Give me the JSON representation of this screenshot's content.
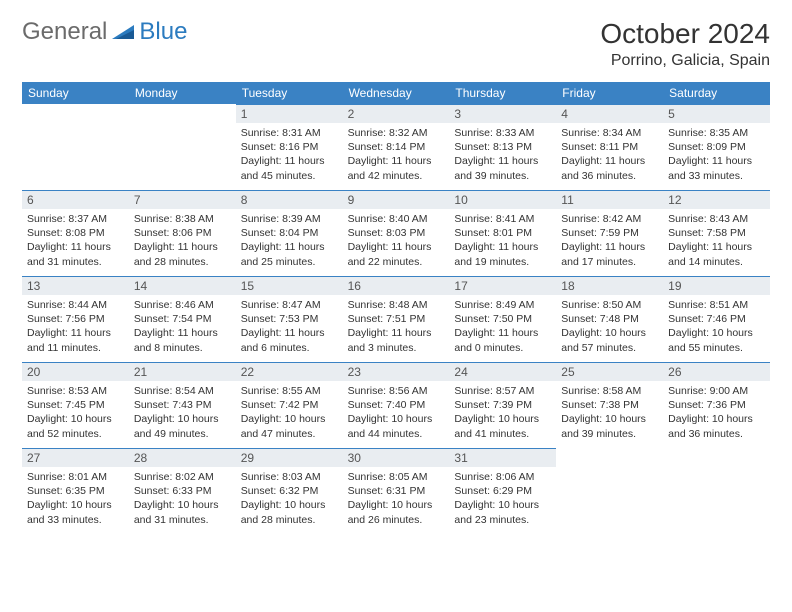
{
  "logo": {
    "part1": "General",
    "part2": "Blue"
  },
  "title": "October 2024",
  "location": "Porrino, Galicia, Spain",
  "colors": {
    "header_bg": "#3a82c4",
    "daynum_bg": "#e9edf1",
    "border": "#3a82c4",
    "logo_gray": "#6b6b6b",
    "logo_blue": "#2b7bbf"
  },
  "dayHeaders": [
    "Sunday",
    "Monday",
    "Tuesday",
    "Wednesday",
    "Thursday",
    "Friday",
    "Saturday"
  ],
  "weeks": [
    [
      null,
      null,
      {
        "n": "1",
        "sr": "Sunrise: 8:31 AM",
        "ss": "Sunset: 8:16 PM",
        "dl": "Daylight: 11 hours and 45 minutes."
      },
      {
        "n": "2",
        "sr": "Sunrise: 8:32 AM",
        "ss": "Sunset: 8:14 PM",
        "dl": "Daylight: 11 hours and 42 minutes."
      },
      {
        "n": "3",
        "sr": "Sunrise: 8:33 AM",
        "ss": "Sunset: 8:13 PM",
        "dl": "Daylight: 11 hours and 39 minutes."
      },
      {
        "n": "4",
        "sr": "Sunrise: 8:34 AM",
        "ss": "Sunset: 8:11 PM",
        "dl": "Daylight: 11 hours and 36 minutes."
      },
      {
        "n": "5",
        "sr": "Sunrise: 8:35 AM",
        "ss": "Sunset: 8:09 PM",
        "dl": "Daylight: 11 hours and 33 minutes."
      }
    ],
    [
      {
        "n": "6",
        "sr": "Sunrise: 8:37 AM",
        "ss": "Sunset: 8:08 PM",
        "dl": "Daylight: 11 hours and 31 minutes."
      },
      {
        "n": "7",
        "sr": "Sunrise: 8:38 AM",
        "ss": "Sunset: 8:06 PM",
        "dl": "Daylight: 11 hours and 28 minutes."
      },
      {
        "n": "8",
        "sr": "Sunrise: 8:39 AM",
        "ss": "Sunset: 8:04 PM",
        "dl": "Daylight: 11 hours and 25 minutes."
      },
      {
        "n": "9",
        "sr": "Sunrise: 8:40 AM",
        "ss": "Sunset: 8:03 PM",
        "dl": "Daylight: 11 hours and 22 minutes."
      },
      {
        "n": "10",
        "sr": "Sunrise: 8:41 AM",
        "ss": "Sunset: 8:01 PM",
        "dl": "Daylight: 11 hours and 19 minutes."
      },
      {
        "n": "11",
        "sr": "Sunrise: 8:42 AM",
        "ss": "Sunset: 7:59 PM",
        "dl": "Daylight: 11 hours and 17 minutes."
      },
      {
        "n": "12",
        "sr": "Sunrise: 8:43 AM",
        "ss": "Sunset: 7:58 PM",
        "dl": "Daylight: 11 hours and 14 minutes."
      }
    ],
    [
      {
        "n": "13",
        "sr": "Sunrise: 8:44 AM",
        "ss": "Sunset: 7:56 PM",
        "dl": "Daylight: 11 hours and 11 minutes."
      },
      {
        "n": "14",
        "sr": "Sunrise: 8:46 AM",
        "ss": "Sunset: 7:54 PM",
        "dl": "Daylight: 11 hours and 8 minutes."
      },
      {
        "n": "15",
        "sr": "Sunrise: 8:47 AM",
        "ss": "Sunset: 7:53 PM",
        "dl": "Daylight: 11 hours and 6 minutes."
      },
      {
        "n": "16",
        "sr": "Sunrise: 8:48 AM",
        "ss": "Sunset: 7:51 PM",
        "dl": "Daylight: 11 hours and 3 minutes."
      },
      {
        "n": "17",
        "sr": "Sunrise: 8:49 AM",
        "ss": "Sunset: 7:50 PM",
        "dl": "Daylight: 11 hours and 0 minutes."
      },
      {
        "n": "18",
        "sr": "Sunrise: 8:50 AM",
        "ss": "Sunset: 7:48 PM",
        "dl": "Daylight: 10 hours and 57 minutes."
      },
      {
        "n": "19",
        "sr": "Sunrise: 8:51 AM",
        "ss": "Sunset: 7:46 PM",
        "dl": "Daylight: 10 hours and 55 minutes."
      }
    ],
    [
      {
        "n": "20",
        "sr": "Sunrise: 8:53 AM",
        "ss": "Sunset: 7:45 PM",
        "dl": "Daylight: 10 hours and 52 minutes."
      },
      {
        "n": "21",
        "sr": "Sunrise: 8:54 AM",
        "ss": "Sunset: 7:43 PM",
        "dl": "Daylight: 10 hours and 49 minutes."
      },
      {
        "n": "22",
        "sr": "Sunrise: 8:55 AM",
        "ss": "Sunset: 7:42 PM",
        "dl": "Daylight: 10 hours and 47 minutes."
      },
      {
        "n": "23",
        "sr": "Sunrise: 8:56 AM",
        "ss": "Sunset: 7:40 PM",
        "dl": "Daylight: 10 hours and 44 minutes."
      },
      {
        "n": "24",
        "sr": "Sunrise: 8:57 AM",
        "ss": "Sunset: 7:39 PM",
        "dl": "Daylight: 10 hours and 41 minutes."
      },
      {
        "n": "25",
        "sr": "Sunrise: 8:58 AM",
        "ss": "Sunset: 7:38 PM",
        "dl": "Daylight: 10 hours and 39 minutes."
      },
      {
        "n": "26",
        "sr": "Sunrise: 9:00 AM",
        "ss": "Sunset: 7:36 PM",
        "dl": "Daylight: 10 hours and 36 minutes."
      }
    ],
    [
      {
        "n": "27",
        "sr": "Sunrise: 8:01 AM",
        "ss": "Sunset: 6:35 PM",
        "dl": "Daylight: 10 hours and 33 minutes."
      },
      {
        "n": "28",
        "sr": "Sunrise: 8:02 AM",
        "ss": "Sunset: 6:33 PM",
        "dl": "Daylight: 10 hours and 31 minutes."
      },
      {
        "n": "29",
        "sr": "Sunrise: 8:03 AM",
        "ss": "Sunset: 6:32 PM",
        "dl": "Daylight: 10 hours and 28 minutes."
      },
      {
        "n": "30",
        "sr": "Sunrise: 8:05 AM",
        "ss": "Sunset: 6:31 PM",
        "dl": "Daylight: 10 hours and 26 minutes."
      },
      {
        "n": "31",
        "sr": "Sunrise: 8:06 AM",
        "ss": "Sunset: 6:29 PM",
        "dl": "Daylight: 10 hours and 23 minutes."
      },
      null,
      null
    ]
  ]
}
